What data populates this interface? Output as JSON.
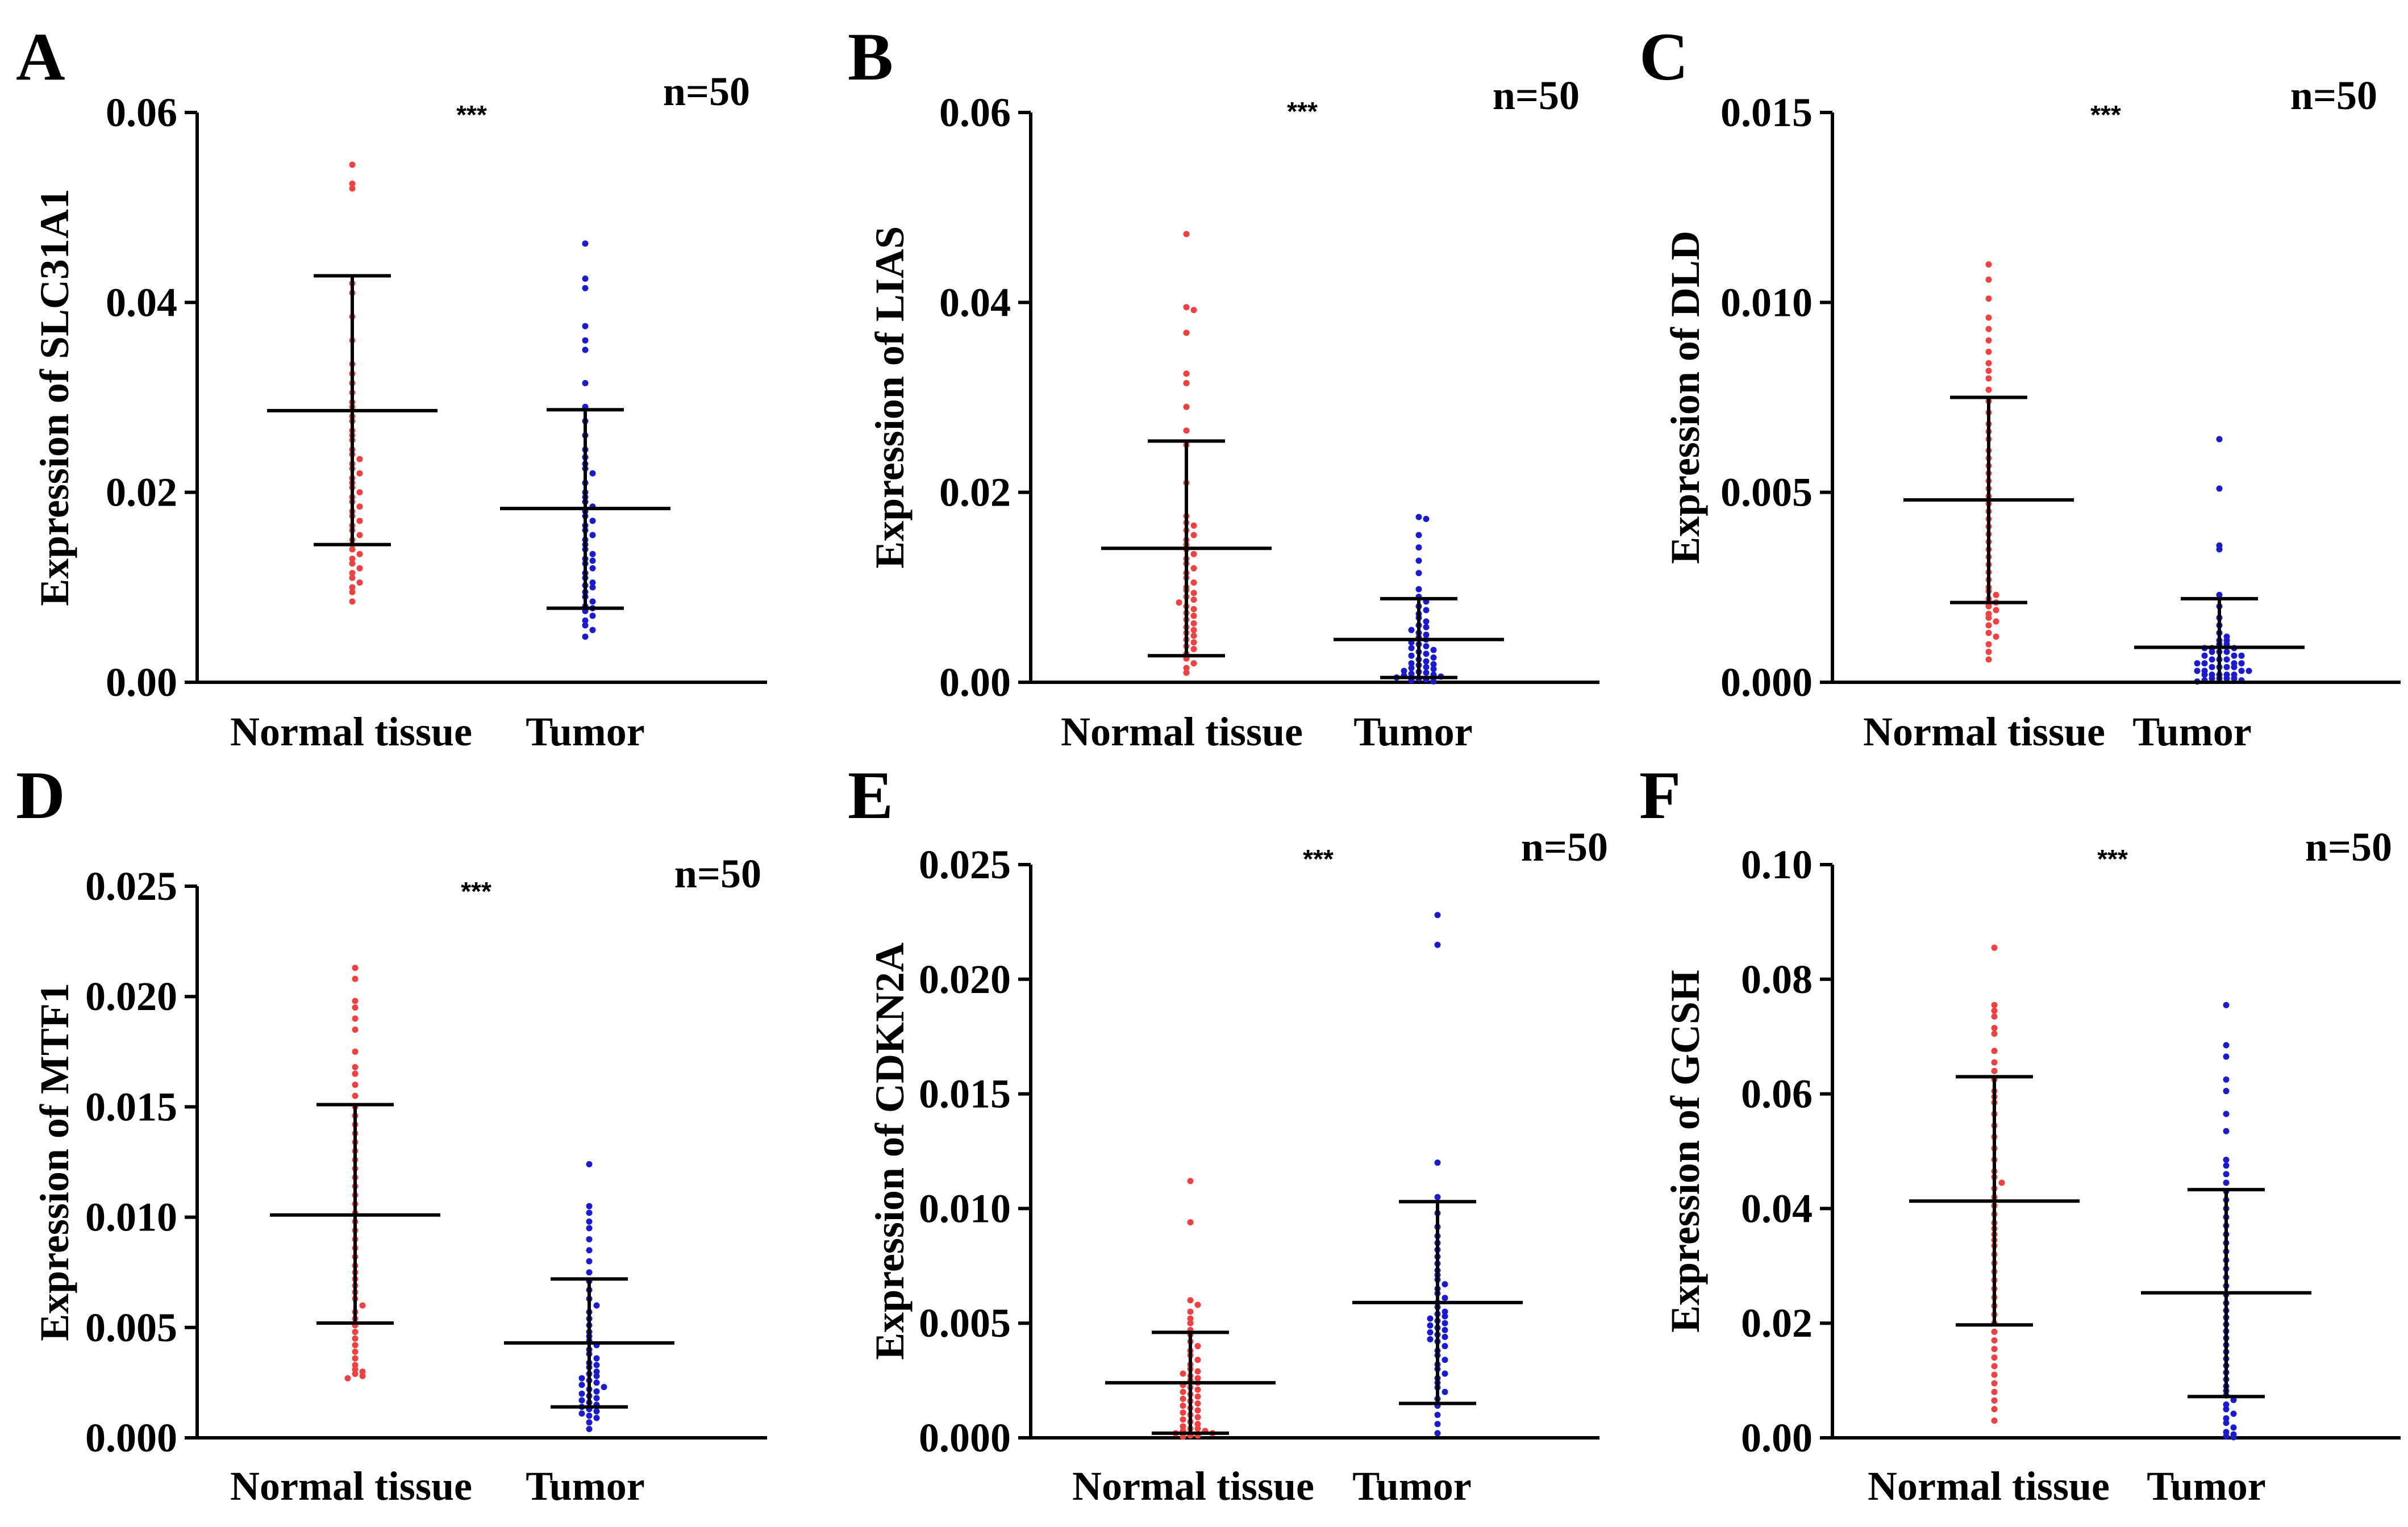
{
  "figure": {
    "colors": {
      "normal": "#f04040",
      "tumor": "#1a1ad0",
      "axis": "#000000"
    }
  },
  "chart_data": [
    {
      "panel": "A",
      "type": "scatter",
      "title": "",
      "ylabel": "Expression of SLC31A1",
      "xlabel": "",
      "categories": [
        "Normal tissue",
        "Tumor"
      ],
      "ylim": [
        0,
        0.06
      ],
      "yticks": [
        0,
        0.02,
        0.04,
        0.06
      ],
      "ytick_labels": [
        "0.00",
        "0.02",
        "0.04",
        "0.06"
      ],
      "significance": "***",
      "n_label": "n=50",
      "summary": [
        {
          "name": "Normal tissue",
          "mean": 0.0286,
          "sd_low": 0.0145,
          "sd_high": 0.0428
        },
        {
          "name": "Tumor",
          "mean": 0.0183,
          "sd_low": 0.0078,
          "sd_high": 0.0287
        }
      ],
      "series": [
        {
          "name": "Normal tissue",
          "values": [
            0.0545,
            0.0525,
            0.052,
            0.042,
            0.041,
            0.0385,
            0.036,
            0.0335,
            0.0325,
            0.0315,
            0.0305,
            0.0295,
            0.029,
            0.028,
            0.0275,
            0.0265,
            0.026,
            0.0255,
            0.0245,
            0.024,
            0.0235,
            0.023,
            0.0225,
            0.022,
            0.0215,
            0.021,
            0.0205,
            0.02,
            0.0195,
            0.019,
            0.0185,
            0.018,
            0.0175,
            0.017,
            0.0165,
            0.016,
            0.0155,
            0.015,
            0.0145,
            0.014,
            0.0135,
            0.013,
            0.0125,
            0.012,
            0.0115,
            0.011,
            0.0105,
            0.01,
            0.0095,
            0.0085
          ]
        },
        {
          "name": "Tumor",
          "values": [
            0.0462,
            0.0425,
            0.0415,
            0.0375,
            0.036,
            0.035,
            0.0315,
            0.029,
            0.0275,
            0.026,
            0.0245,
            0.0237,
            0.023,
            0.0225,
            0.022,
            0.021,
            0.02,
            0.0195,
            0.019,
            0.0185,
            0.018,
            0.0175,
            0.017,
            0.0165,
            0.016,
            0.0155,
            0.015,
            0.0145,
            0.014,
            0.0135,
            0.013,
            0.0128,
            0.0125,
            0.012,
            0.0115,
            0.011,
            0.0105,
            0.0102,
            0.01,
            0.0095,
            0.009,
            0.0085,
            0.008,
            0.0078,
            0.0075,
            0.007,
            0.0065,
            0.006,
            0.0055,
            0.0048
          ]
        }
      ]
    },
    {
      "panel": "B",
      "type": "scatter",
      "title": "",
      "ylabel": "Expression of LIAS",
      "xlabel": "",
      "categories": [
        "Normal tissue",
        "Tumor"
      ],
      "ylim": [
        0,
        0.06
      ],
      "yticks": [
        0,
        0.02,
        0.04,
        0.06
      ],
      "ytick_labels": [
        "0.00",
        "0.02",
        "0.04",
        "0.06"
      ],
      "significance": "***",
      "n_label": "n=50",
      "summary": [
        {
          "name": "Normal tissue",
          "mean": 0.0141,
          "sd_low": 0.0028,
          "sd_high": 0.0254
        },
        {
          "name": "Tumor",
          "mean": 0.0045,
          "sd_low": 0.0005,
          "sd_high": 0.0088
        }
      ],
      "series": [
        {
          "name": "Normal tissue",
          "values": [
            0.0472,
            0.0395,
            0.0392,
            0.0368,
            0.0325,
            0.0315,
            0.029,
            0.0265,
            0.025,
            0.021,
            0.0175,
            0.0168,
            0.0165,
            0.016,
            0.0155,
            0.015,
            0.0145,
            0.014,
            0.0135,
            0.013,
            0.0125,
            0.012,
            0.0115,
            0.011,
            0.0105,
            0.01,
            0.0097,
            0.0094,
            0.009,
            0.0087,
            0.0084,
            0.008,
            0.0077,
            0.0073,
            0.007,
            0.0066,
            0.0062,
            0.0058,
            0.0055,
            0.0052,
            0.0049,
            0.0045,
            0.0042,
            0.0038,
            0.0035,
            0.003,
            0.0025,
            0.002,
            0.0015,
            0.001
          ]
        },
        {
          "name": "Tumor",
          "values": [
            0.0174,
            0.0172,
            0.0155,
            0.0142,
            0.0128,
            0.0115,
            0.0098,
            0.009,
            0.0085,
            0.008,
            0.0076,
            0.0072,
            0.0068,
            0.0064,
            0.006,
            0.0058,
            0.0055,
            0.0052,
            0.005,
            0.0047,
            0.0045,
            0.0042,
            0.004,
            0.0038,
            0.0036,
            0.0034,
            0.0032,
            0.003,
            0.0028,
            0.0026,
            0.0024,
            0.0022,
            0.002,
            0.0019,
            0.0018,
            0.0016,
            0.0015,
            0.0014,
            0.0012,
            0.0011,
            0.001,
            0.0009,
            0.0008,
            0.0007,
            0.0006,
            0.0005,
            0.0004,
            0.0003,
            0.0002,
            0.0001
          ]
        }
      ]
    },
    {
      "panel": "C",
      "type": "scatter",
      "title": "",
      "ylabel": "Expression of DLD",
      "xlabel": "",
      "categories": [
        "Normal tissue",
        "Tumor"
      ],
      "ylim": [
        0,
        0.015
      ],
      "yticks": [
        0,
        0.005,
        0.01,
        0.015
      ],
      "ytick_labels": [
        "0.000",
        "0.005",
        "0.010",
        "0.015"
      ],
      "significance": "***",
      "n_label": "n=50",
      "summary": [
        {
          "name": "Normal tissue",
          "mean": 0.0048,
          "sd_low": 0.0021,
          "sd_high": 0.0075
        },
        {
          "name": "Tumor",
          "mean": 0.00092,
          "sd_low": 0.0,
          "sd_high": 0.0022
        }
      ],
      "series": [
        {
          "name": "Normal tissue",
          "values": [
            0.011,
            0.0106,
            0.0101,
            0.0096,
            0.0093,
            0.009,
            0.0087,
            0.0084,
            0.0082,
            0.008,
            0.0077,
            0.0074,
            0.0071,
            0.0068,
            0.0066,
            0.0064,
            0.0061,
            0.0059,
            0.0057,
            0.0055,
            0.0053,
            0.0051,
            0.0049,
            0.0047,
            0.0045,
            0.0043,
            0.0041,
            0.0039,
            0.0037,
            0.0035,
            0.0033,
            0.0031,
            0.0029,
            0.0027,
            0.0025,
            0.0024,
            0.0023,
            0.0022,
            0.0021,
            0.002,
            0.0019,
            0.0018,
            0.0017,
            0.0016,
            0.0015,
            0.0013,
            0.0012,
            0.001,
            0.0008,
            0.0006
          ]
        },
        {
          "name": "Tumor",
          "values": [
            0.0064,
            0.0051,
            0.0036,
            0.0035,
            0.0023,
            0.002,
            0.0017,
            0.0015,
            0.0013,
            0.0012,
            0.0011,
            0.0011,
            0.001,
            0.001,
            0.0009,
            0.0009,
            0.0009,
            0.0008,
            0.0008,
            0.0008,
            0.0007,
            0.0007,
            0.0007,
            0.0006,
            0.0006,
            0.0006,
            0.0005,
            0.0005,
            0.0005,
            0.0005,
            0.0004,
            0.0004,
            0.0004,
            0.0004,
            0.0003,
            0.0003,
            0.0003,
            0.0003,
            0.0002,
            0.0002,
            0.0002,
            0.0002,
            0.0002,
            0.0001,
            0.0001,
            0.0001,
            0.0001,
            5e-05,
            5e-05,
            2e-05
          ]
        }
      ]
    },
    {
      "panel": "D",
      "type": "scatter",
      "title": "",
      "ylabel": "Expression of MTF1",
      "xlabel": "",
      "categories": [
        "Normal tissue",
        "Tumor"
      ],
      "ylim": [
        0,
        0.025
      ],
      "yticks": [
        0,
        0.005,
        0.01,
        0.015,
        0.02,
        0.025
      ],
      "ytick_labels": [
        "0.000",
        "0.005",
        "0.010",
        "0.015",
        "0.020",
        "0.025"
      ],
      "significance": "***",
      "n_label": "n=50",
      "summary": [
        {
          "name": "Normal tissue",
          "mean": 0.0101,
          "sd_low": 0.0052,
          "sd_high": 0.0151
        },
        {
          "name": "Tumor",
          "mean": 0.0043,
          "sd_low": 0.0014,
          "sd_high": 0.0072
        }
      ],
      "series": [
        {
          "name": "Normal tissue",
          "values": [
            0.0213,
            0.0208,
            0.0198,
            0.0195,
            0.019,
            0.0185,
            0.0175,
            0.0168,
            0.0165,
            0.016,
            0.0155,
            0.015,
            0.0146,
            0.0142,
            0.0138,
            0.0134,
            0.013,
            0.0126,
            0.0122,
            0.0118,
            0.0114,
            0.011,
            0.0106,
            0.0102,
            0.0098,
            0.0094,
            0.009,
            0.0086,
            0.0082,
            0.0078,
            0.0075,
            0.0072,
            0.0069,
            0.0066,
            0.0063,
            0.006,
            0.0057,
            0.0054,
            0.0051,
            0.0048,
            0.0045,
            0.0042,
            0.0039,
            0.0036,
            0.0033,
            0.0031,
            0.003,
            0.0029,
            0.0028,
            0.0027
          ]
        },
        {
          "name": "Tumor",
          "values": [
            0.0124,
            0.0105,
            0.0102,
            0.0098,
            0.0095,
            0.009,
            0.0085,
            0.008,
            0.0075,
            0.0071,
            0.0067,
            0.0063,
            0.006,
            0.0057,
            0.0054,
            0.0051,
            0.0048,
            0.0046,
            0.0044,
            0.0042,
            0.004,
            0.0038,
            0.0036,
            0.0034,
            0.0033,
            0.0032,
            0.003,
            0.0029,
            0.0028,
            0.0027,
            0.0026,
            0.0025,
            0.0024,
            0.0023,
            0.0022,
            0.0021,
            0.002,
            0.0019,
            0.0018,
            0.0017,
            0.0016,
            0.0015,
            0.0014,
            0.0013,
            0.0012,
            0.0011,
            0.001,
            0.0009,
            0.0007,
            0.0004
          ]
        }
      ]
    },
    {
      "panel": "E",
      "type": "scatter",
      "title": "",
      "ylabel": "Expression of CDKN2A",
      "xlabel": "",
      "categories": [
        "Normal tissue",
        "Tumor"
      ],
      "ylim": [
        0,
        0.025
      ],
      "yticks": [
        0,
        0.005,
        0.01,
        0.015,
        0.02,
        0.025
      ],
      "ytick_labels": [
        "0.000",
        "0.005",
        "0.010",
        "0.015",
        "0.020",
        "0.025"
      ],
      "significance": "***",
      "n_label": "n=50",
      "summary": [
        {
          "name": "Normal tissue",
          "mean": 0.0024,
          "sd_low": 0.0002,
          "sd_high": 0.0046
        },
        {
          "name": "Tumor",
          "mean": 0.0059,
          "sd_low": 0.0015,
          "sd_high": 0.0103
        }
      ],
      "series": [
        {
          "name": "Normal tissue",
          "values": [
            0.0112,
            0.0094,
            0.006,
            0.0058,
            0.0055,
            0.0052,
            0.005,
            0.0047,
            0.0045,
            0.0042,
            0.004,
            0.0038,
            0.0036,
            0.0034,
            0.0032,
            0.003,
            0.0029,
            0.0028,
            0.0027,
            0.0026,
            0.0025,
            0.0024,
            0.0023,
            0.0022,
            0.0021,
            0.002,
            0.0019,
            0.0018,
            0.0017,
            0.0016,
            0.0015,
            0.0014,
            0.0013,
            0.0012,
            0.0011,
            0.001,
            0.0009,
            0.0008,
            0.0007,
            0.0006,
            0.0005,
            0.0004,
            0.0004,
            0.0003,
            0.0003,
            0.0002,
            0.0002,
            0.0001,
            0.0001,
            5e-05
          ]
        },
        {
          "name": "Tumor",
          "values": [
            0.0228,
            0.0215,
            0.012,
            0.0105,
            0.0098,
            0.0092,
            0.0088,
            0.0085,
            0.0082,
            0.0079,
            0.0076,
            0.0073,
            0.0071,
            0.0069,
            0.0067,
            0.0065,
            0.0063,
            0.0061,
            0.0059,
            0.0057,
            0.0055,
            0.0054,
            0.0053,
            0.0052,
            0.0051,
            0.005,
            0.0049,
            0.0048,
            0.0047,
            0.0046,
            0.0045,
            0.0044,
            0.0043,
            0.0042,
            0.004,
            0.0038,
            0.0036,
            0.0034,
            0.0032,
            0.003,
            0.0028,
            0.0026,
            0.0024,
            0.0022,
            0.002,
            0.0017,
            0.0014,
            0.001,
            0.0006,
            0.0002
          ]
        }
      ]
    },
    {
      "panel": "F",
      "type": "scatter",
      "title": "",
      "ylabel": "Expression of GCSH",
      "xlabel": "",
      "categories": [
        "Normal tissue",
        "Tumor"
      ],
      "ylim": [
        0,
        0.1
      ],
      "yticks": [
        0,
        0.02,
        0.04,
        0.06,
        0.08,
        0.1
      ],
      "ytick_labels": [
        "0.00",
        "0.02",
        "0.04",
        "0.06",
        "0.08",
        "0.10"
      ],
      "significance": "***",
      "n_label": "n=50",
      "summary": [
        {
          "name": "Normal tissue",
          "mean": 0.0413,
          "sd_low": 0.0197,
          "sd_high": 0.063
        },
        {
          "name": "Tumor",
          "mean": 0.0253,
          "sd_low": 0.0072,
          "sd_high": 0.0433
        }
      ],
      "series": [
        {
          "name": "Normal tissue",
          "values": [
            0.0855,
            0.0755,
            0.0745,
            0.0735,
            0.0715,
            0.0705,
            0.0675,
            0.0655,
            0.064,
            0.0625,
            0.0605,
            0.0595,
            0.0585,
            0.0565,
            0.0545,
            0.0525,
            0.0505,
            0.0485,
            0.0465,
            0.0455,
            0.0445,
            0.0435,
            0.042,
            0.0405,
            0.039,
            0.0375,
            0.0365,
            0.0355,
            0.0345,
            0.0335,
            0.032,
            0.0305,
            0.029,
            0.0275,
            0.026,
            0.0245,
            0.023,
            0.0215,
            0.02,
            0.0185,
            0.017,
            0.0155,
            0.014,
            0.0125,
            0.011,
            0.0095,
            0.008,
            0.0065,
            0.005,
            0.003
          ]
        },
        {
          "name": "Tumor",
          "values": [
            0.0755,
            0.0685,
            0.0665,
            0.0625,
            0.0605,
            0.0565,
            0.0535,
            0.0485,
            0.0475,
            0.046,
            0.0445,
            0.043,
            0.0415,
            0.04,
            0.0385,
            0.037,
            0.0355,
            0.034,
            0.0325,
            0.031,
            0.0295,
            0.028,
            0.0265,
            0.025,
            0.0235,
            0.0222,
            0.021,
            0.0198,
            0.0186,
            0.0174,
            0.0162,
            0.015,
            0.0138,
            0.0126,
            0.0114,
            0.0102,
            0.009,
            0.0082,
            0.0074,
            0.0066,
            0.0058,
            0.005,
            0.0042,
            0.0034,
            0.0026,
            0.0018,
            0.001,
            0.0006,
            0.0003,
            0.0001
          ]
        }
      ]
    }
  ]
}
